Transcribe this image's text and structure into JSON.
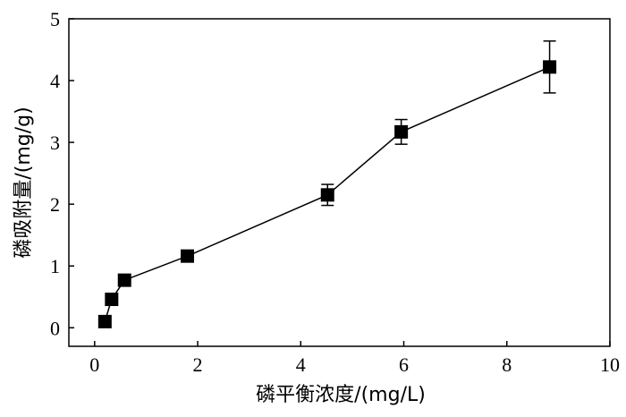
{
  "chart_data": {
    "type": "line",
    "xlabel": "磷平衡浓度/(mg/L)",
    "ylabel": "磷吸附量/(mg/g)",
    "xlim": [
      -0.5,
      10
    ],
    "ylim": [
      -0.3,
      5
    ],
    "xticks": [
      0,
      2,
      4,
      6,
      8,
      10
    ],
    "yticks": [
      0,
      1,
      2,
      3,
      4,
      5
    ],
    "grid": false,
    "marker": "square",
    "series": [
      {
        "x": [
          0.2,
          0.33,
          0.58,
          1.8,
          4.52,
          5.95,
          8.83
        ],
        "y": [
          0.1,
          0.46,
          0.77,
          1.16,
          2.15,
          3.17,
          4.22
        ],
        "yerr": [
          0,
          0,
          0,
          0,
          0.17,
          0.2,
          0.42
        ]
      }
    ]
  }
}
